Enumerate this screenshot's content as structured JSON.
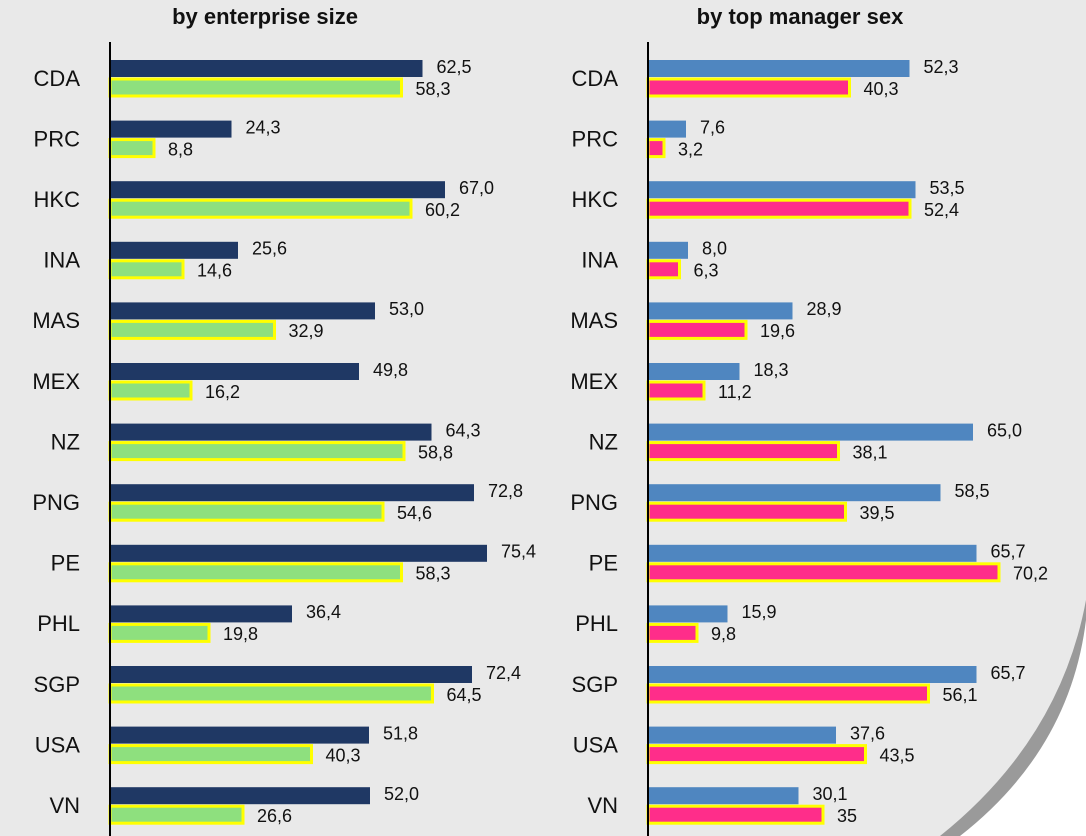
{
  "chart_data": [
    {
      "type": "bar",
      "orientation": "horizontal",
      "subtitle": "by enterprise size",
      "categories": [
        "CDA",
        "PRC",
        "HKC",
        "INA",
        "MAS",
        "MEX",
        "NZ",
        "PNG",
        "PE",
        "PHL",
        "SGP",
        "USA",
        "VN"
      ],
      "xlim": [
        0,
        80
      ],
      "series": [
        {
          "color": "#1f3864",
          "values": [
            62.5,
            24.3,
            67.0,
            25.6,
            53.0,
            49.8,
            64.3,
            72.8,
            75.4,
            36.4,
            72.4,
            51.8,
            52.0
          ],
          "value_labels": [
            "62,5",
            "24,3",
            "67,0",
            "25,6",
            "53,0",
            "49,8",
            "64,3",
            "72,8",
            "75,4",
            "36,4",
            "72,4",
            "51,8",
            "52,0"
          ]
        },
        {
          "color": "#8ee07e",
          "outline": "#ffff00",
          "values": [
            58.3,
            8.8,
            60.2,
            14.6,
            32.9,
            16.2,
            58.8,
            54.6,
            58.3,
            19.8,
            64.5,
            40.3,
            26.6
          ],
          "value_labels": [
            "58,3",
            "8,8",
            "60,2",
            "14,6",
            "32,9",
            "16,2",
            "58,8",
            "54,6",
            "58,3",
            "19,8",
            "64,5",
            "40,3",
            "26,6"
          ]
        }
      ]
    },
    {
      "type": "bar",
      "orientation": "horizontal",
      "subtitle": "by top manager sex",
      "categories": [
        "CDA",
        "PRC",
        "HKC",
        "INA",
        "MAS",
        "MEX",
        "NZ",
        "PNG",
        "PE",
        "PHL",
        "SGP",
        "USA",
        "VN"
      ],
      "xlim": [
        0,
        80
      ],
      "series": [
        {
          "color": "#4f86c0",
          "values": [
            52.3,
            7.6,
            53.5,
            8.0,
            28.9,
            18.3,
            65.0,
            58.5,
            65.7,
            15.9,
            65.7,
            37.6,
            30.1
          ],
          "value_labels": [
            "52,3",
            "7,6",
            "53,5",
            "8,0",
            "28,9",
            "18,3",
            "65,0",
            "58,5",
            "65,7",
            "15,9",
            "65,7",
            "37,6",
            "30,1"
          ]
        },
        {
          "color": "#ff2d8a",
          "outline": "#ffff00",
          "values": [
            40.3,
            3.2,
            52.4,
            6.3,
            19.6,
            11.2,
            38.1,
            39.5,
            70.2,
            9.8,
            56.1,
            43.5,
            35
          ],
          "value_labels": [
            "40,3",
            "3,2",
            "52,4",
            "6,3",
            "19,6",
            "11,2",
            "38,1",
            "39,5",
            "70,2",
            "9,8",
            "56,1",
            "43,5",
            "35"
          ]
        }
      ]
    }
  ]
}
